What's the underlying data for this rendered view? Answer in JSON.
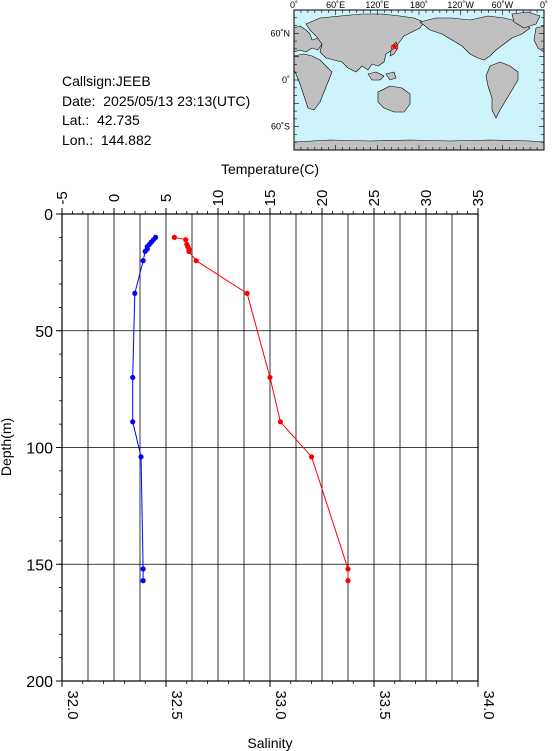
{
  "header": {
    "callsign_label": "Callsign:JEEB",
    "date_label": "Date:  2025/05/13 23:13(UTC)",
    "lat_label": "Lat.:  42.735",
    "lon_label": "Lon.:  144.882"
  },
  "map": {
    "lon_ticks": [
      "0˚",
      "60˚E",
      "120˚E",
      "180˚",
      "120˚W",
      "60˚W",
      "0˚"
    ],
    "lat_ticks": [
      "60˚N",
      "0˚",
      "60˚S"
    ],
    "station": {
      "lat": 42.735,
      "lon": 144.882
    },
    "ocean_color": "#ccf4fa",
    "land_color": "#c0c0c0",
    "marker_color": "#ff0000"
  },
  "chart_data": {
    "type": "line",
    "xlabel_top": "Temperature(C)",
    "xlabel_bottom": "Salinity",
    "ylabel": "Depth(m)",
    "temperature_range": [
      -5,
      35
    ],
    "temperature_ticks": [
      "-5",
      "0",
      "5",
      "10",
      "15",
      "20",
      "25",
      "30",
      "35"
    ],
    "salinity_range": [
      32.0,
      34.0
    ],
    "salinity_ticks": [
      "32.0",
      "32.5",
      "33.0",
      "33.5",
      "34.0"
    ],
    "depth_range": [
      0,
      200
    ],
    "depth_ticks": [
      "0",
      "50",
      "100",
      "150",
      "200"
    ],
    "grid": true,
    "series": [
      {
        "color": "#ff0000",
        "variable": "temperature",
        "points": [
          {
            "depth": 10,
            "value": 5.8
          },
          {
            "depth": 11,
            "value": 6.9
          },
          {
            "depth": 13,
            "value": 7.0
          },
          {
            "depth": 14,
            "value": 7.1
          },
          {
            "depth": 15,
            "value": 7.2
          },
          {
            "depth": 16,
            "value": 7.2
          },
          {
            "depth": 20,
            "value": 7.9
          },
          {
            "depth": 34,
            "value": 12.8
          },
          {
            "depth": 70,
            "value": 15.0
          },
          {
            "depth": 89,
            "value": 16.0
          },
          {
            "depth": 104,
            "value": 19.0
          },
          {
            "depth": 152,
            "value": 22.5
          },
          {
            "depth": 157,
            "value": 22.5
          }
        ]
      },
      {
        "color": "#0000ff",
        "variable": "salinity",
        "points": [
          {
            "depth": 10,
            "value": 32.45
          },
          {
            "depth": 11,
            "value": 32.44
          },
          {
            "depth": 12,
            "value": 32.43
          },
          {
            "depth": 13,
            "value": 32.42
          },
          {
            "depth": 14,
            "value": 32.41
          },
          {
            "depth": 15,
            "value": 32.41
          },
          {
            "depth": 16,
            "value": 32.4
          },
          {
            "depth": 20,
            "value": 32.39
          },
          {
            "depth": 34,
            "value": 32.35
          },
          {
            "depth": 70,
            "value": 32.34
          },
          {
            "depth": 89,
            "value": 32.34
          },
          {
            "depth": 104,
            "value": 32.38
          },
          {
            "depth": 152,
            "value": 32.39
          },
          {
            "depth": 157,
            "value": 32.39
          }
        ]
      }
    ]
  }
}
